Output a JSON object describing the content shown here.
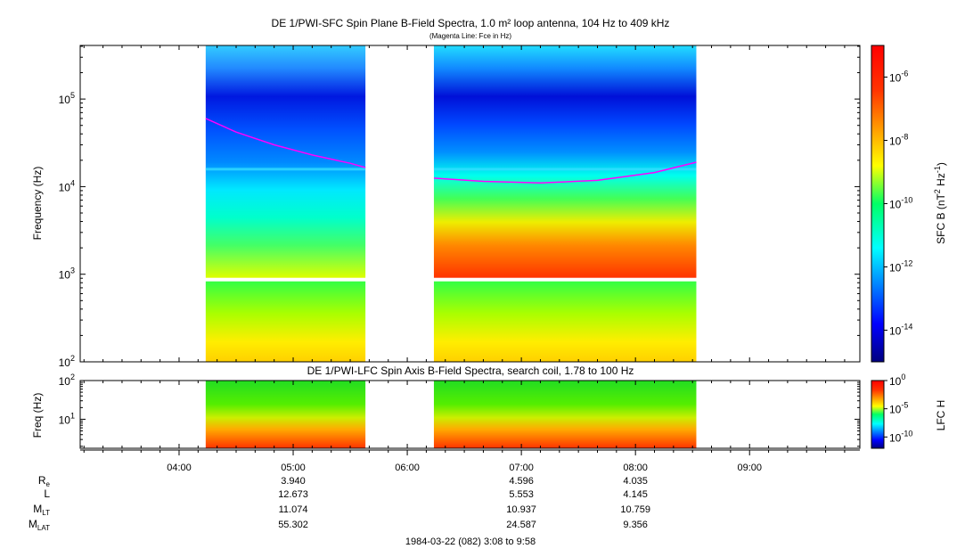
{
  "chart_data": [
    {
      "type": "heatmap",
      "title": "DE 1/PWI-SFC  Spin Plane B-Field Spectra, 1.0 m² loop antenna, 104 Hz to 409 kHz",
      "subtitle": "(Magenta Line: Fce in Hz)",
      "ylabel": "Frequency (Hz)",
      "y_scale": "log",
      "ylim": [
        100,
        409000
      ],
      "y_ticks": [
        {
          "base": "10",
          "exp": "2"
        },
        {
          "base": "10",
          "exp": "3"
        },
        {
          "base": "10",
          "exp": "4"
        },
        {
          "base": "10",
          "exp": "5"
        }
      ],
      "colorbar": {
        "label_main": "SFC B (nT",
        "label_sup1": "2",
        "label_mid": " Hz",
        "label_sup2": "-1",
        "label_end": ")",
        "ticks": [
          {
            "base": "10",
            "exp": "-6"
          },
          {
            "base": "10",
            "exp": "-8"
          },
          {
            "base": "10",
            "exp": "-10"
          },
          {
            "base": "10",
            "exp": "-12"
          },
          {
            "base": "10",
            "exp": "-14"
          }
        ]
      },
      "data_intervals_ut": [
        [
          "04:14",
          "05:38"
        ],
        [
          "06:14",
          "08:32"
        ]
      ],
      "fce_line": {
        "color": "#ff00ff",
        "segments": [
          {
            "t": [
              "04:14",
              "04:30",
              "04:50",
              "05:10",
              "05:30",
              "05:38"
            ],
            "hz": [
              60000,
              42000,
              30000,
              23000,
              18500,
              16500
            ]
          },
          {
            "t": [
              "06:14",
              "06:40",
              "07:10",
              "07:40",
              "08:10",
              "08:32"
            ],
            "hz": [
              12500,
              11500,
              11000,
              11800,
              14500,
              19000
            ]
          }
        ]
      },
      "grid": false
    },
    {
      "type": "heatmap",
      "title": "DE 1/PWI-LFC  Spin Axis B-Field Spectra, search coil, 1.78 to 100 Hz",
      "ylabel": "Freq (Hz)",
      "y_scale": "log",
      "ylim": [
        1.78,
        100
      ],
      "y_ticks": [
        {
          "base": "10",
          "exp": "1"
        },
        {
          "base": "10",
          "exp": "2"
        }
      ],
      "colorbar": {
        "label": "LFC H",
        "ticks": [
          {
            "base": "10",
            "exp": "0"
          },
          {
            "base": "10",
            "exp": "-5"
          },
          {
            "base": "10",
            "exp": "-10"
          }
        ]
      },
      "data_intervals_ut": [
        [
          "04:14",
          "05:38"
        ],
        [
          "06:14",
          "08:32"
        ]
      ],
      "grid": false
    }
  ],
  "x_axis": {
    "range_ut": [
      "03:08",
      "09:58"
    ],
    "tick_labels": [
      "04:00",
      "05:00",
      "06:00",
      "07:00",
      "08:00",
      "09:00"
    ]
  },
  "ephemeris": {
    "rows": [
      {
        "label": "R",
        "sub": "e",
        "values": [
          "3.940",
          "4.596",
          "4.035"
        ]
      },
      {
        "label": "L",
        "sub": "",
        "values": [
          "12.673",
          "5.553",
          "4.145"
        ]
      },
      {
        "label": "M",
        "sub": "LT",
        "values": [
          "11.074",
          "10.937",
          "10.759"
        ]
      },
      {
        "label": "M",
        "sub": "LAT",
        "values": [
          "55.302",
          "24.587",
          "9.356"
        ]
      }
    ],
    "times_ut": [
      "05:00",
      "07:00",
      "08:00"
    ]
  },
  "footer": "1984-03-22 (082) 3:08 to 9:58"
}
